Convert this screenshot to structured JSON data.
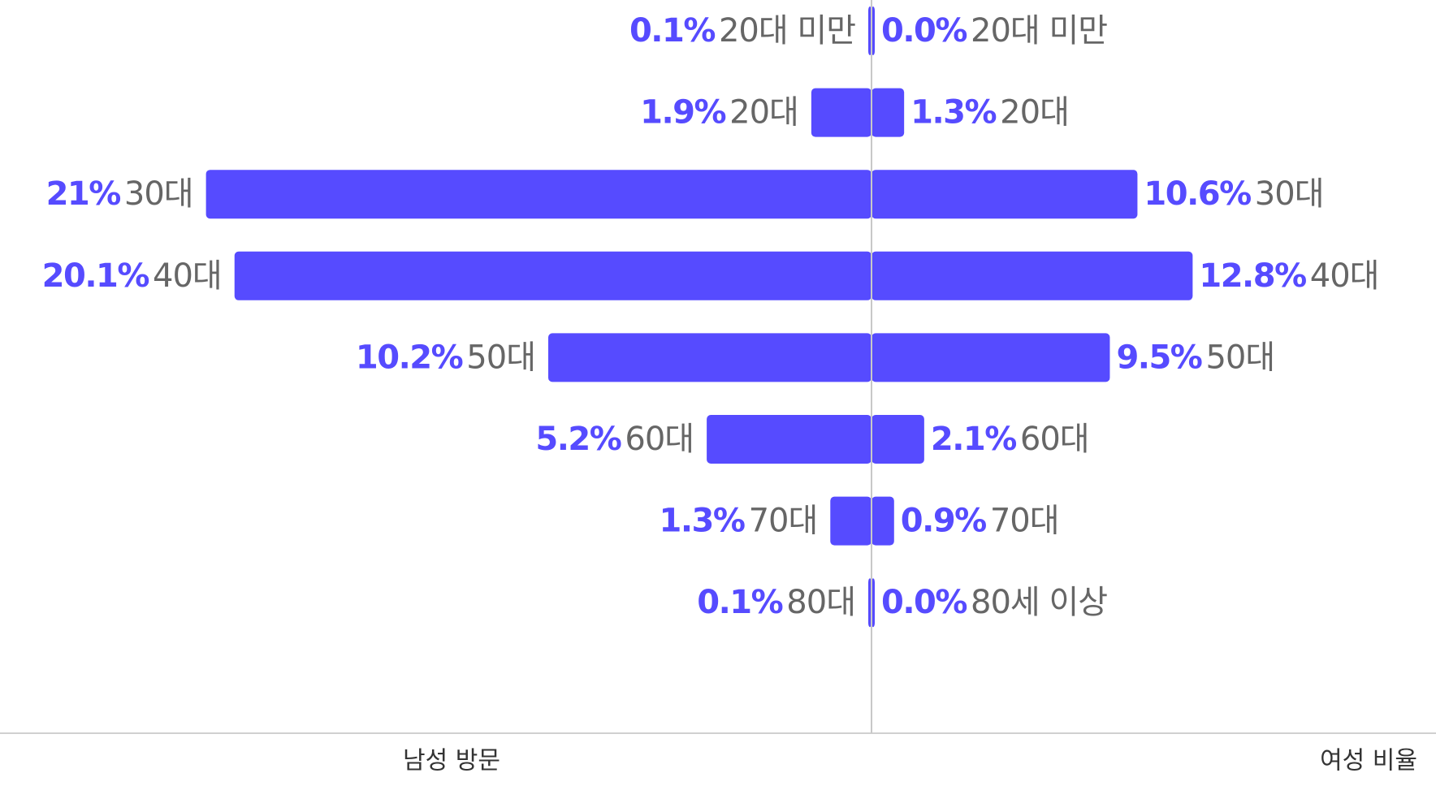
{
  "chart_data": {
    "type": "butterfly",
    "series": [
      {
        "name": "남성 방문",
        "color": "#564bff",
        "side": "left",
        "xlim": [
          0,
          27.5
        ],
        "categories": [
          "20대 미만",
          "20대",
          "30대",
          "40대",
          "50대",
          "60대",
          "70대",
          "80대"
        ],
        "values": [
          0.1,
          1.9,
          21,
          20.1,
          10.2,
          5.2,
          1.3,
          0.1
        ],
        "value_labels": [
          "0.1%",
          "1.9%",
          "21%",
          "20.1%",
          "10.2%",
          "5.2%",
          "1.3%",
          "0.1%"
        ]
      },
      {
        "name": "여성 비율",
        "color": "#564bff",
        "side": "right",
        "xlim": [
          0,
          22.5
        ],
        "categories": [
          "20대 미만",
          "20대",
          "30대",
          "40대",
          "50대",
          "60대",
          "70대",
          "80세 이상"
        ],
        "values": [
          0.0,
          1.3,
          10.6,
          12.8,
          9.5,
          2.1,
          0.9,
          0.0
        ],
        "value_labels": [
          "0.0%",
          "1.3%",
          "10.6%",
          "12.8%",
          "9.5%",
          "2.1%",
          "0.9%",
          "0.0%"
        ]
      }
    ]
  }
}
